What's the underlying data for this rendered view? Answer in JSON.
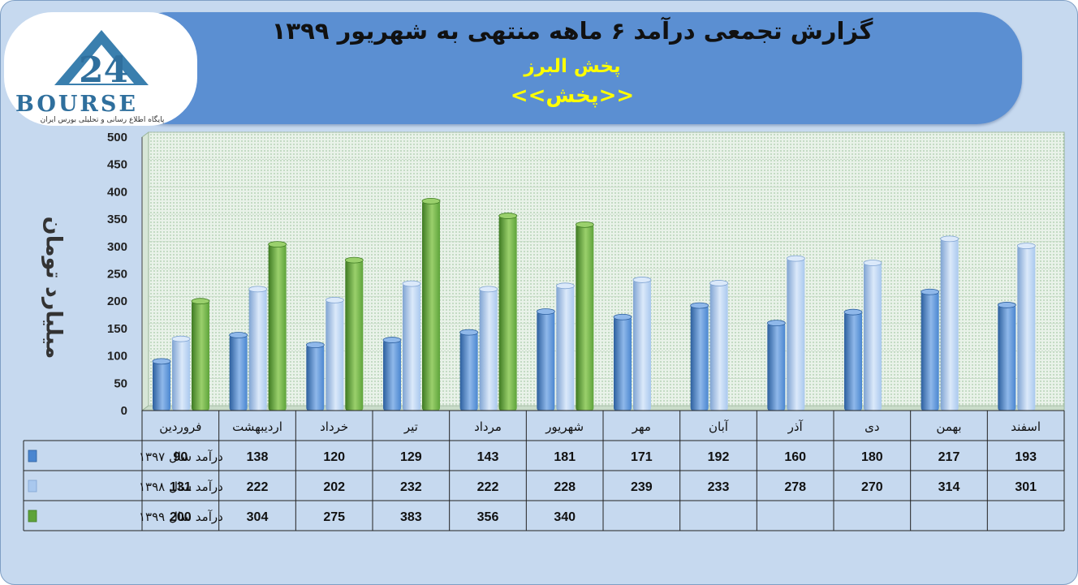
{
  "title": {
    "main": "گزارش تجمعی درآمد ۶ ماهه منتهی به شهریور ۱۳۹۹",
    "company": "پخش البرز",
    "symbol": "<<پخش>>"
  },
  "logo": {
    "text": "BOURSE",
    "tagline": "پایگاه اطلاع رسانی و تحلیلی بورس ایران"
  },
  "colors": {
    "series1": "#4a86d0",
    "series2": "#a9c8ee",
    "series3": "#5ea33a",
    "title_band": "#5b8fd2",
    "subtitle": "#ffff00"
  },
  "chart_data": {
    "type": "bar",
    "ylabel": "میلیارد تومان",
    "ylim": [
      0,
      500
    ],
    "yticks": [
      0,
      50,
      100,
      150,
      200,
      250,
      300,
      350,
      400,
      450,
      500
    ],
    "grid": true,
    "legend": "data-table",
    "categories": [
      "فروردین",
      "اردیبهشت",
      "خرداد",
      "تیر",
      "مرداد",
      "شهریور",
      "مهر",
      "آبان",
      "آذر",
      "دی",
      "بهمن",
      "اسفند"
    ],
    "series": [
      {
        "name": "درآمد  سال ۱۳۹۷",
        "values": [
          90,
          138,
          120,
          129,
          143,
          181,
          171,
          192,
          160,
          180,
          217,
          193
        ]
      },
      {
        "name": "درآمد  سال ۱۳۹۸",
        "values": [
          131,
          222,
          202,
          232,
          222,
          228,
          239,
          233,
          278,
          270,
          314,
          301
        ]
      },
      {
        "name": "درآمد  سال ۱۳۹۹",
        "values": [
          200,
          304,
          275,
          383,
          356,
          340,
          null,
          null,
          null,
          null,
          null,
          null
        ]
      }
    ]
  }
}
